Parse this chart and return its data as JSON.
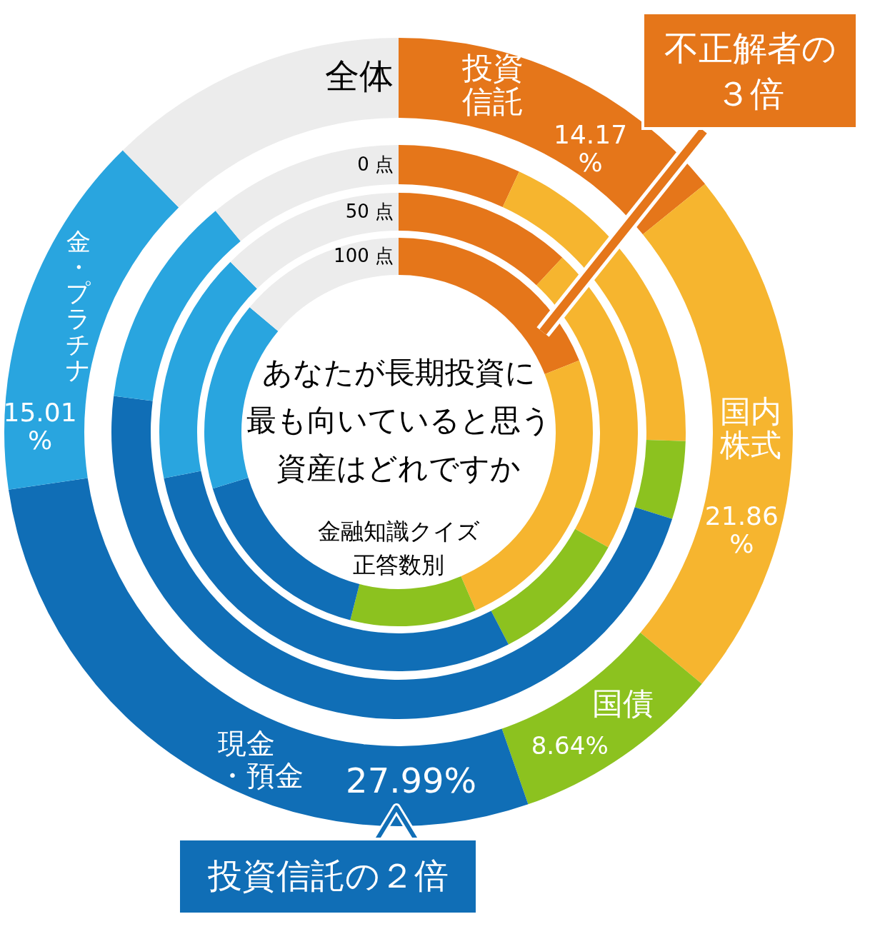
{
  "chart_data": {
    "type": "donut",
    "title": "あなたが長期投資に最も向いていると思う資産はどれですか",
    "subtitle": "金融知識クイズ正答数別",
    "categories": [
      "投資信託",
      "国内株式",
      "国債",
      "現金・預金",
      "金・プラチナ",
      null
    ],
    "colors": [
      "#e5761a",
      "#f6b52f",
      "#8cc21f",
      "#106eb6",
      "#29a5df",
      "#ececec"
    ],
    "series": [
      {
        "name": "全体",
        "values": [
          14.17,
          21.86,
          8.64,
          27.99,
          15.01,
          12.33
        ],
        "value_labels": [
          "14.17\n%",
          "21.86\n%",
          "8.64%",
          "27.99%",
          "15.01\n%",
          null
        ]
      },
      {
        "name": "0 点",
        "values": [
          6.9,
          18.6,
          4.4,
          47.1,
          12.0,
          11.0
        ]
      },
      {
        "name": "50 点",
        "values": [
          12.0,
          21.0,
          9.4,
          29.5,
          15.7,
          12.4
        ]
      },
      {
        "name": "100 点",
        "values": [
          19.0,
          24.5,
          10.5,
          16.3,
          15.8,
          13.9
        ]
      }
    ],
    "annotations": [
      "不正解者の３倍",
      "投資信託の２倍"
    ]
  }
}
